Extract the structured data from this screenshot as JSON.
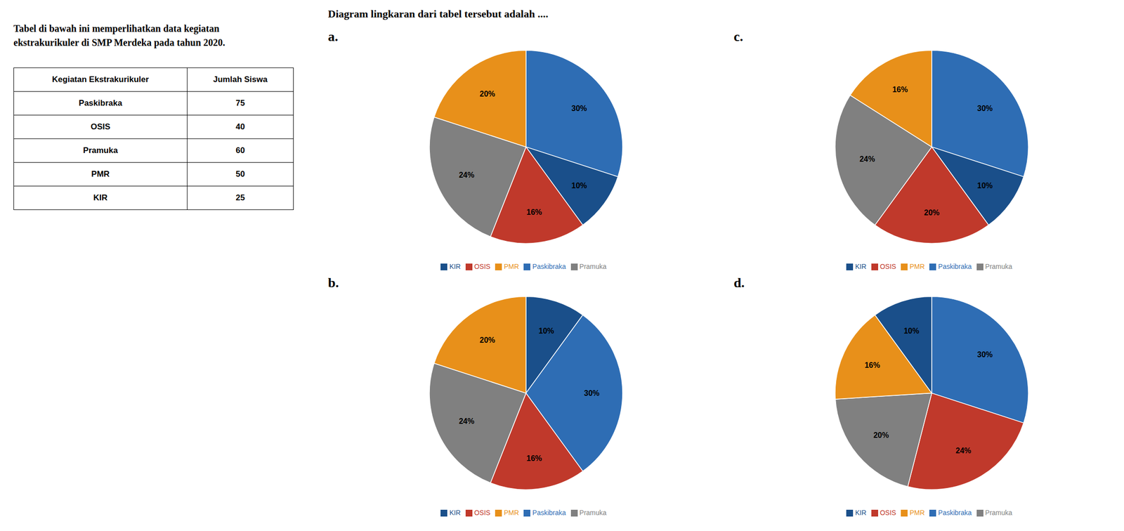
{
  "title": "Diagram lingkaran dari tabel tersebut adalah ....",
  "chart_data": [
    {
      "type": "table",
      "title": "Tabel di bawah ini memperlihatkan data kegiatan",
      "subtitle": "ekstrakurikuler di SMP Merdeka pada tahun 2020.",
      "x_label": "Kegiatan Ekstrakurikuler",
      "y_label": "Jumlah Siswa",
      "categories": [
        "Paskibraka",
        "OSIS",
        "Pramuka",
        "PMR",
        "KIR"
      ],
      "values": [
        75,
        40,
        60,
        50,
        25
      ]
    },
    {
      "type": "pie",
      "title": "a.",
      "categories": [
        "Paskibraka",
        "KIR",
        "OSIS",
        "Pramuka",
        "PMR"
      ],
      "values": [
        30,
        10,
        16,
        24,
        20
      ],
      "value_labels": [
        "30%",
        "10%",
        "16%",
        "24%",
        "20%"
      ],
      "colors": [
        "#2E6DB4",
        "#1A4F8A",
        "#C0392B",
        "#808080",
        "#E8901A"
      ],
      "data_labels": true,
      "legend": "bottom"
    },
    {
      "type": "pie",
      "title": "b.",
      "categories": [
        "KIR",
        "Paskibraka",
        "OSIS",
        "Pramuka",
        "PMR"
      ],
      "values": [
        10,
        30,
        16,
        24,
        20
      ],
      "value_labels": [
        "10%",
        "30%",
        "16%",
        "24%",
        "20%"
      ],
      "colors": [
        "#1A4F8A",
        "#2E6DB4",
        "#C0392B",
        "#808080",
        "#E8901A"
      ],
      "data_labels": true,
      "legend": "bottom"
    },
    {
      "type": "pie",
      "title": "c.",
      "categories": [
        "Paskibraka",
        "KIR",
        "OSIS",
        "Pramuka",
        "PMR"
      ],
      "values": [
        30,
        10,
        20,
        24,
        16
      ],
      "value_labels": [
        "30%",
        "10%",
        "20%",
        "24%",
        "16%"
      ],
      "colors": [
        "#2E6DB4",
        "#1A4F8A",
        "#C0392B",
        "#808080",
        "#E8901A"
      ],
      "data_labels": true,
      "legend": "bottom"
    },
    {
      "type": "pie",
      "title": "d.",
      "categories": [
        "Paskibraka",
        "OSIS",
        "Pramuka",
        "PMR",
        "KIR"
      ],
      "values": [
        30,
        24,
        20,
        16,
        10
      ],
      "value_labels": [
        "30%",
        "24%",
        "20%",
        "16%",
        "10%"
      ],
      "colors": [
        "#2E6DB4",
        "#C0392B",
        "#808080",
        "#E8901A",
        "#1A4F8A"
      ],
      "data_labels": true,
      "legend": "bottom"
    }
  ]
}
